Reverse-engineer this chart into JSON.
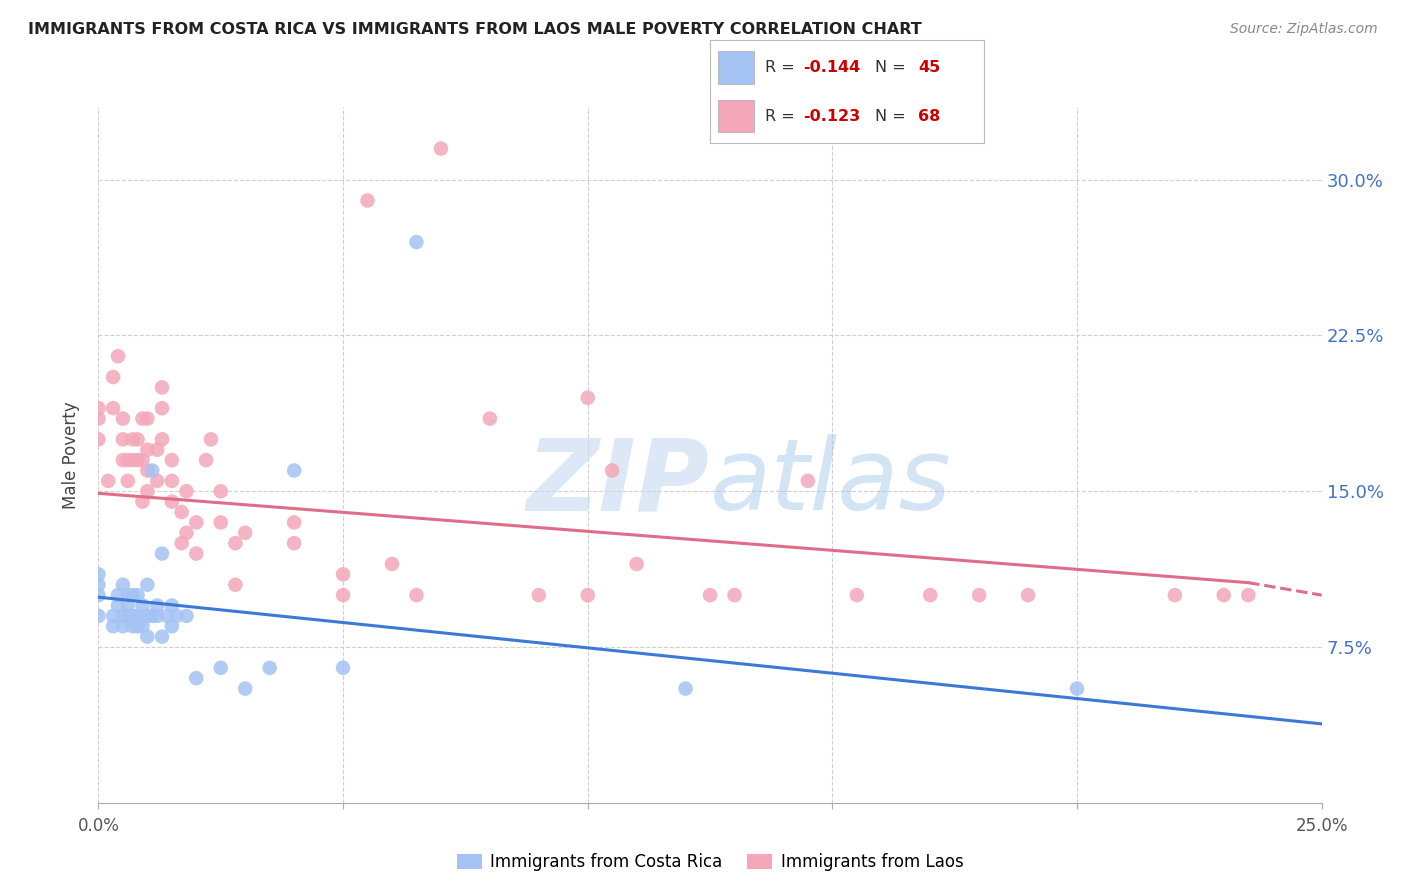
{
  "title": "IMMIGRANTS FROM COSTA RICA VS IMMIGRANTS FROM LAOS MALE POVERTY CORRELATION CHART",
  "source": "Source: ZipAtlas.com",
  "ylabel": "Male Poverty",
  "ytick_labels": [
    "7.5%",
    "15.0%",
    "22.5%",
    "30.0%"
  ],
  "ytick_values": [
    0.075,
    0.15,
    0.225,
    0.3
  ],
  "xlim": [
    0.0,
    0.25
  ],
  "ylim": [
    0.0,
    0.335
  ],
  "legend_label1": "Immigrants from Costa Rica",
  "legend_label2": "Immigrants from Laos",
  "color_blue": "#a4c2f4",
  "color_pink": "#f4a7b9",
  "color_blue_line": "#3c78d8",
  "color_pink_line": "#e06c8a",
  "watermark_zip": "ZIP",
  "watermark_atlas": "atlas",
  "costa_rica_x": [
    0.0,
    0.0,
    0.0,
    0.0,
    0.003,
    0.003,
    0.004,
    0.004,
    0.005,
    0.005,
    0.005,
    0.006,
    0.006,
    0.006,
    0.007,
    0.007,
    0.007,
    0.008,
    0.008,
    0.008,
    0.009,
    0.009,
    0.01,
    0.01,
    0.01,
    0.011,
    0.011,
    0.012,
    0.012,
    0.013,
    0.013,
    0.014,
    0.015,
    0.015,
    0.016,
    0.018,
    0.02,
    0.025,
    0.03,
    0.035,
    0.04,
    0.05,
    0.065,
    0.12,
    0.2
  ],
  "costa_rica_y": [
    0.09,
    0.1,
    0.105,
    0.11,
    0.085,
    0.09,
    0.095,
    0.1,
    0.085,
    0.09,
    0.105,
    0.09,
    0.095,
    0.1,
    0.085,
    0.09,
    0.1,
    0.085,
    0.09,
    0.1,
    0.085,
    0.095,
    0.08,
    0.09,
    0.105,
    0.16,
    0.09,
    0.09,
    0.095,
    0.08,
    0.12,
    0.09,
    0.085,
    0.095,
    0.09,
    0.09,
    0.06,
    0.065,
    0.055,
    0.065,
    0.16,
    0.065,
    0.27,
    0.055,
    0.055
  ],
  "laos_x": [
    0.0,
    0.0,
    0.0,
    0.002,
    0.003,
    0.003,
    0.004,
    0.005,
    0.005,
    0.005,
    0.006,
    0.006,
    0.007,
    0.007,
    0.008,
    0.008,
    0.009,
    0.009,
    0.009,
    0.01,
    0.01,
    0.01,
    0.01,
    0.012,
    0.012,
    0.013,
    0.013,
    0.013,
    0.015,
    0.015,
    0.015,
    0.017,
    0.017,
    0.018,
    0.018,
    0.02,
    0.02,
    0.022,
    0.023,
    0.025,
    0.025,
    0.028,
    0.028,
    0.03,
    0.04,
    0.04,
    0.05,
    0.05,
    0.055,
    0.06,
    0.065,
    0.07,
    0.08,
    0.09,
    0.1,
    0.1,
    0.105,
    0.11,
    0.125,
    0.13,
    0.145,
    0.155,
    0.17,
    0.18,
    0.19,
    0.22,
    0.23,
    0.235
  ],
  "laos_y": [
    0.175,
    0.185,
    0.19,
    0.155,
    0.19,
    0.205,
    0.215,
    0.165,
    0.175,
    0.185,
    0.155,
    0.165,
    0.165,
    0.175,
    0.165,
    0.175,
    0.145,
    0.165,
    0.185,
    0.15,
    0.16,
    0.17,
    0.185,
    0.155,
    0.17,
    0.175,
    0.19,
    0.2,
    0.145,
    0.155,
    0.165,
    0.125,
    0.14,
    0.13,
    0.15,
    0.12,
    0.135,
    0.165,
    0.175,
    0.135,
    0.15,
    0.105,
    0.125,
    0.13,
    0.125,
    0.135,
    0.1,
    0.11,
    0.29,
    0.115,
    0.1,
    0.315,
    0.185,
    0.1,
    0.195,
    0.1,
    0.16,
    0.115,
    0.1,
    0.1,
    0.155,
    0.1,
    0.1,
    0.1,
    0.1,
    0.1,
    0.1,
    0.1
  ],
  "cr_line_x": [
    0.0,
    0.25
  ],
  "cr_line_y": [
    0.099,
    0.038
  ],
  "laos_line_x0": 0.0,
  "laos_line_x1": 0.235,
  "laos_line_x2": 0.25,
  "laos_line_y0": 0.149,
  "laos_line_y1": 0.106,
  "laos_line_y2": 0.1
}
